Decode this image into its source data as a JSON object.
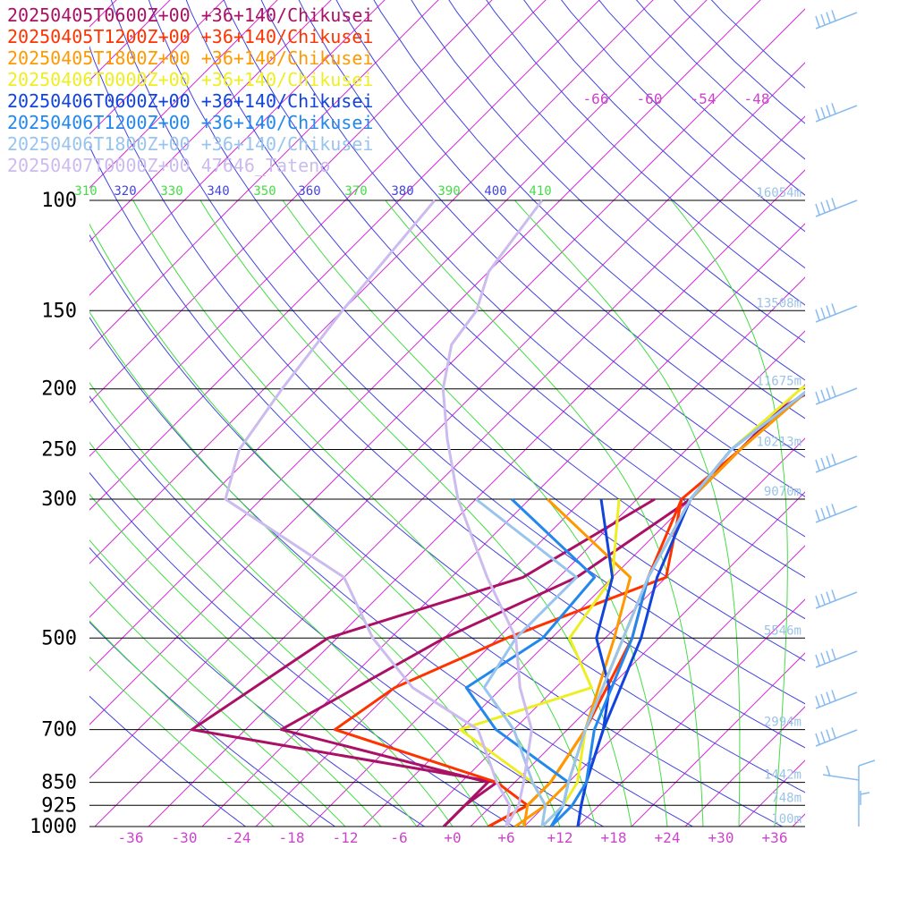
{
  "chart_data": {
    "type": "line",
    "title": "",
    "xlabel": "",
    "ylabel": "",
    "pressure_levels": [
      100,
      150,
      200,
      250,
      300,
      500,
      700,
      850,
      925,
      1000
    ],
    "pressure_tick_labels": [
      "100",
      "150",
      "200",
      "250",
      "300",
      "500",
      "700",
      "850",
      "925",
      "1000"
    ],
    "temperature_ticks": [
      -36,
      -30,
      -24,
      -18,
      -12,
      -6,
      0,
      6,
      12,
      18,
      24,
      30,
      36
    ],
    "temperature_tick_labels": [
      "-36",
      "-30",
      "-24",
      "-18",
      "-12",
      "-6",
      "+0",
      "+6",
      "+12",
      "+18",
      "+24",
      "+30",
      "+36"
    ],
    "upper_temperature_labels": [
      "-66",
      "-60",
      "-54",
      "-48"
    ],
    "theta_labels": [
      "310",
      "320",
      "330",
      "340",
      "350",
      "360",
      "370",
      "380",
      "390",
      "400",
      "410"
    ],
    "height_labels": [
      {
        "p": 100,
        "text": "16054m"
      },
      {
        "p": 150,
        "text": "13508m"
      },
      {
        "p": 200,
        "text": "11675m"
      },
      {
        "p": 250,
        "text": "10213m"
      },
      {
        "p": 300,
        "text": "9070m"
      },
      {
        "p": 500,
        "text": "5546m"
      },
      {
        "p": 700,
        "text": "2994m"
      },
      {
        "p": 850,
        "text": "1442m"
      },
      {
        "p": 925,
        "text": "748m"
      },
      {
        "p": 1000,
        "text": "100m"
      }
    ],
    "colors": {
      "isotherm": "#cc33cc",
      "dry_adiabat": "#4444dd",
      "moist_adiabat": "#44dd44",
      "isobar": "#000000",
      "wind_barb": "#88bbee"
    },
    "series": [
      {
        "name": "20250405T0600Z+00 +36+140/Chikusei",
        "color": "#aa1166",
        "points": [
          [
            -4.2,
            60
          ],
          [
            12,
            100
          ],
          [
            10,
            130
          ],
          [
            6,
            150
          ],
          [
            -6,
            190
          ],
          [
            -8,
            200
          ],
          [
            -9,
            205
          ],
          [
            -10,
            215
          ],
          [
            -10,
            250
          ],
          [
            -10,
            300
          ],
          [
            -14,
            400
          ],
          [
            -22,
            500
          ],
          [
            -30,
            700
          ],
          [
            -1,
            850
          ],
          [
            -1,
            925
          ],
          [
            -1,
            1000
          ]
        ],
        "dewpoints": [
          [
            -14,
            300
          ],
          [
            -20,
            400
          ],
          [
            -35,
            500
          ],
          [
            -40,
            700
          ],
          [
            0,
            850
          ],
          [
            -1,
            925
          ],
          [
            -1,
            1000
          ]
        ]
      },
      {
        "name": "20250405T1200Z+00 +36+140/Chikusei",
        "color": "#ff3300",
        "points": [
          [
            -14,
            60
          ],
          [
            14,
            100
          ],
          [
            10,
            120
          ],
          [
            4,
            150
          ],
          [
            -6,
            180
          ],
          [
            -9,
            200
          ],
          [
            -10,
            250
          ],
          [
            -11,
            300
          ],
          [
            -6,
            400
          ],
          [
            -1,
            500
          ],
          [
            4,
            700
          ],
          [
            6,
            850
          ],
          [
            6,
            925
          ],
          [
            4,
            1000
          ]
        ],
        "dewpoints": [
          [
            -11,
            300
          ],
          [
            -4,
            400
          ],
          [
            -15,
            500
          ],
          [
            -22,
            600
          ],
          [
            -24,
            700
          ],
          [
            0,
            850
          ],
          [
            6,
            925
          ],
          [
            4,
            1000
          ]
        ]
      },
      {
        "name": "20250405T1800Z+00 +36+140/Chikusei",
        "color": "#ff9900",
        "points": [
          [
            -15,
            60
          ],
          [
            14,
            100
          ],
          [
            10,
            120
          ],
          [
            4,
            150
          ],
          [
            -6,
            180
          ],
          [
            -9,
            200
          ],
          [
            -10,
            250
          ],
          [
            -10,
            300
          ],
          [
            -6,
            400
          ],
          [
            -2,
            500
          ],
          [
            4,
            700
          ],
          [
            8,
            850
          ],
          [
            8,
            925
          ],
          [
            7,
            1000
          ]
        ],
        "dewpoints": [
          [
            -26,
            300
          ],
          [
            -8,
            400
          ],
          [
            -3,
            500
          ],
          [
            4,
            700
          ],
          [
            6,
            850
          ],
          [
            6,
            925
          ],
          [
            8,
            1000
          ]
        ]
      },
      {
        "name": "20250406T0000Z+00 +36+140/Chikusei",
        "color": "#eeee22",
        "points": [
          [
            -15,
            60
          ],
          [
            13,
            100
          ],
          [
            9,
            120
          ],
          [
            3,
            150
          ],
          [
            -7,
            180
          ],
          [
            -10,
            200
          ],
          [
            -11,
            250
          ],
          [
            -10,
            300
          ],
          [
            -6,
            400
          ],
          [
            -2,
            500
          ],
          [
            4,
            700
          ],
          [
            9,
            850
          ],
          [
            10,
            925
          ],
          [
            10,
            1000
          ]
        ],
        "dewpoints": [
          [
            -18,
            300
          ],
          [
            -10,
            400
          ],
          [
            -8,
            500
          ],
          [
            0,
            600
          ],
          [
            -10,
            700
          ],
          [
            4,
            850
          ],
          [
            8,
            925
          ],
          [
            10,
            1000
          ]
        ]
      },
      {
        "name": "20250406T0600Z+00 +36+140/Chikusei",
        "color": "#1144dd",
        "points": [
          [
            -15,
            60
          ],
          [
            12,
            100
          ],
          [
            9,
            120
          ],
          [
            4,
            150
          ],
          [
            -6,
            180
          ],
          [
            -9,
            200
          ],
          [
            -11,
            250
          ],
          [
            -10,
            300
          ],
          [
            -5,
            400
          ],
          [
            0,
            500
          ],
          [
            6,
            700
          ],
          [
            10,
            850
          ],
          [
            12,
            925
          ],
          [
            14,
            1000
          ]
        ],
        "dewpoints": [
          [
            -20,
            300
          ],
          [
            -10,
            400
          ],
          [
            -5,
            500
          ],
          [
            2,
            600
          ],
          [
            6,
            700
          ],
          [
            10,
            850
          ],
          [
            12,
            925
          ],
          [
            14,
            1000
          ]
        ]
      },
      {
        "name": "20250406T1200Z+00 +36+140/Chikusei",
        "color": "#2288ee",
        "points": [
          [
            -15,
            60
          ],
          [
            12,
            100
          ],
          [
            9,
            120
          ],
          [
            4,
            150
          ],
          [
            -6,
            180
          ],
          [
            -9,
            200
          ],
          [
            -11,
            250
          ],
          [
            -10,
            300
          ],
          [
            -6,
            400
          ],
          [
            -1,
            500
          ],
          [
            5,
            700
          ],
          [
            10,
            850
          ],
          [
            11,
            925
          ],
          [
            11,
            1000
          ]
        ],
        "dewpoints": [
          [
            -30,
            300
          ],
          [
            -12,
            400
          ],
          [
            -11,
            500
          ],
          [
            -14,
            600
          ],
          [
            -6,
            700
          ],
          [
            8,
            850
          ],
          [
            10,
            925
          ],
          [
            11,
            1000
          ]
        ]
      },
      {
        "name": "20250406T1800Z+00 +36+140/Chikusei",
        "color": "#99c4ee",
        "points": [
          [
            -15,
            60
          ],
          [
            11,
            100
          ],
          [
            8,
            120
          ],
          [
            3,
            150
          ],
          [
            -6,
            180
          ],
          [
            -9,
            200
          ],
          [
            -11,
            250
          ],
          [
            -10,
            300
          ],
          [
            -6,
            400
          ],
          [
            -2,
            500
          ],
          [
            4,
            700
          ],
          [
            8,
            850
          ],
          [
            10,
            925
          ],
          [
            10,
            1000
          ]
        ],
        "dewpoints": [
          [
            -34,
            300
          ],
          [
            -14,
            400
          ],
          [
            -14,
            500
          ],
          [
            -12,
            600
          ],
          [
            -4,
            700
          ],
          [
            4,
            850
          ],
          [
            8,
            925
          ],
          [
            10,
            1000
          ]
        ]
      },
      {
        "name": "20250407T0000Z+00 47646_Tateno",
        "color": "#ccbbee",
        "points": [
          [
            -60,
            100
          ],
          [
            -58,
            130
          ],
          [
            -55,
            150
          ],
          [
            -54,
            170
          ],
          [
            -50,
            200
          ],
          [
            -44,
            240
          ],
          [
            -36,
            300
          ],
          [
            -24,
            400
          ],
          [
            -14,
            500
          ],
          [
            -8,
            600
          ],
          [
            -2,
            700
          ],
          [
            3,
            850
          ],
          [
            5,
            925
          ],
          [
            6,
            1000
          ]
        ],
        "dewpoints": [
          [
            -72,
            100
          ],
          [
            -70,
            150
          ],
          [
            -68,
            200
          ],
          [
            -66,
            250
          ],
          [
            -62,
            300
          ],
          [
            -40,
            400
          ],
          [
            -30,
            500
          ],
          [
            -20,
            600
          ],
          [
            -8,
            700
          ],
          [
            0,
            850
          ],
          [
            4,
            925
          ],
          [
            6,
            1000
          ]
        ]
      }
    ]
  }
}
